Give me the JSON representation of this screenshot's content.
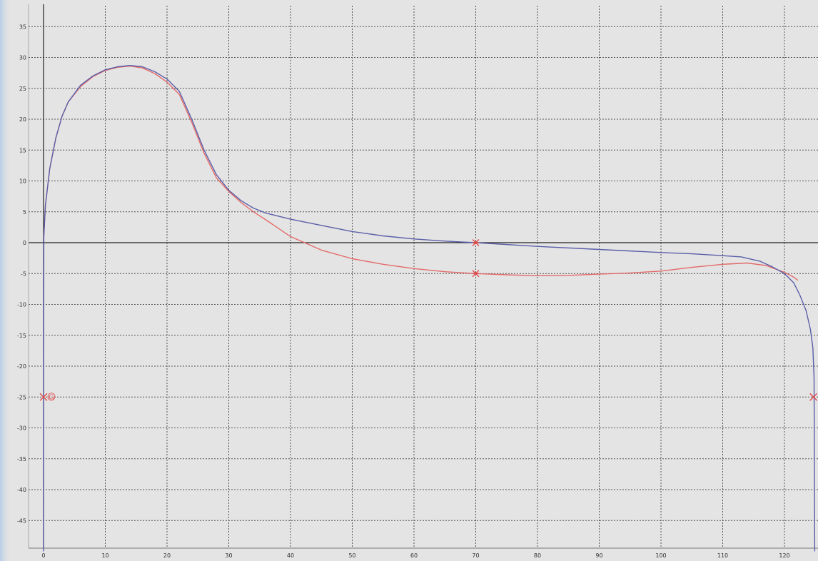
{
  "chart_data": {
    "type": "line",
    "title": "",
    "xlabel": "",
    "ylabel": "",
    "xlim": [
      -3,
      125
    ],
    "ylim": [
      -50,
      38
    ],
    "x_ticks": [
      0,
      10,
      20,
      30,
      40,
      50,
      60,
      70,
      80,
      90,
      100,
      110,
      120
    ],
    "y_ticks": [
      35,
      30,
      25,
      20,
      15,
      10,
      5,
      0,
      -5,
      -10,
      -15,
      -20,
      -25,
      -30,
      -35,
      -40,
      -45
    ],
    "grid": true,
    "colors": {
      "background": "#e4e4e4",
      "grid": "#555555",
      "axis": "#222222",
      "blue_series": "#5a5fa8",
      "red_series": "#e46a6a",
      "marker": "#e04848"
    },
    "series": [
      {
        "color_key": "blue_series",
        "points": [
          [
            0,
            -50
          ],
          [
            0.05,
            1
          ],
          [
            0.3,
            6
          ],
          [
            1,
            12
          ],
          [
            2,
            17
          ],
          [
            3,
            20.5
          ],
          [
            4,
            22.8
          ],
          [
            6,
            25.5
          ],
          [
            8,
            27
          ],
          [
            10,
            28
          ],
          [
            12,
            28.5
          ],
          [
            14,
            28.7
          ],
          [
            16,
            28.5
          ],
          [
            18,
            27.7
          ],
          [
            20,
            26.5
          ],
          [
            22,
            24.5
          ],
          [
            24,
            20
          ],
          [
            26,
            15
          ],
          [
            28,
            11
          ],
          [
            30,
            8.5
          ],
          [
            32,
            6.8
          ],
          [
            34,
            5.6
          ],
          [
            36,
            4.8
          ],
          [
            40,
            3.8
          ],
          [
            45,
            2.8
          ],
          [
            50,
            1.8
          ],
          [
            55,
            1.1
          ],
          [
            60,
            0.6
          ],
          [
            65,
            0.25
          ],
          [
            70,
            0
          ],
          [
            80,
            -0.6
          ],
          [
            90,
            -1.1
          ],
          [
            100,
            -1.6
          ],
          [
            105,
            -1.8
          ],
          [
            110,
            -2.1
          ],
          [
            113,
            -2.3
          ],
          [
            116,
            -3
          ],
          [
            118,
            -3.9
          ],
          [
            120,
            -5
          ],
          [
            121.5,
            -6.5
          ],
          [
            122.5,
            -8.5
          ],
          [
            123.5,
            -11
          ],
          [
            124.2,
            -14
          ],
          [
            124.6,
            -17
          ],
          [
            124.8,
            -22
          ],
          [
            124.9,
            -50
          ]
        ]
      },
      {
        "color_key": "red_series",
        "points": [
          [
            0.05,
            1
          ],
          [
            0.3,
            6
          ],
          [
            1,
            12
          ],
          [
            2,
            17
          ],
          [
            3,
            20.5
          ],
          [
            4,
            22.8
          ],
          [
            6,
            25.3
          ],
          [
            8,
            26.9
          ],
          [
            10,
            27.9
          ],
          [
            12,
            28.4
          ],
          [
            14,
            28.6
          ],
          [
            16,
            28.3
          ],
          [
            18,
            27.4
          ],
          [
            20,
            26
          ],
          [
            22,
            24
          ],
          [
            24,
            19.5
          ],
          [
            26,
            14.5
          ],
          [
            28,
            10.5
          ],
          [
            30,
            8.3
          ],
          [
            32,
            6.5
          ],
          [
            34,
            5
          ],
          [
            36,
            3.7
          ],
          [
            40,
            1
          ],
          [
            45,
            -1.2
          ],
          [
            50,
            -2.6
          ],
          [
            55,
            -3.5
          ],
          [
            60,
            -4.2
          ],
          [
            65,
            -4.7
          ],
          [
            70,
            -5
          ],
          [
            75,
            -5.2
          ],
          [
            80,
            -5.35
          ],
          [
            85,
            -5.3
          ],
          [
            90,
            -5.1
          ],
          [
            95,
            -4.9
          ],
          [
            100,
            -4.6
          ],
          [
            105,
            -4
          ],
          [
            110,
            -3.5
          ],
          [
            114,
            -3.3
          ],
          [
            117,
            -3.7
          ],
          [
            120,
            -4.8
          ],
          [
            121.5,
            -5.6
          ],
          [
            122.2,
            -6.1
          ]
        ]
      }
    ],
    "markers": [
      {
        "x": 70,
        "y": 0,
        "shape": "star"
      },
      {
        "x": 70,
        "y": -5,
        "shape": "star"
      },
      {
        "x": 0,
        "y": -25,
        "shape": "cross",
        "label": "G"
      },
      {
        "x": 124.7,
        "y": -25,
        "shape": "cross"
      }
    ]
  }
}
